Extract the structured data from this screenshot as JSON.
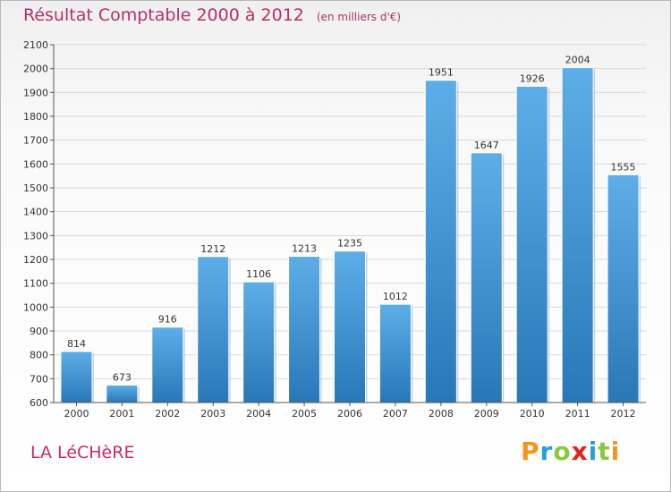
{
  "header": {
    "title": "Résultat Comptable 2000 à 2012",
    "unit": "(en milliers d'€)"
  },
  "footer": {
    "commune": "LA LéCHèRE",
    "logo_text": "Proxiti",
    "logo_colors": [
      "#f7941d",
      "#2a9fd8",
      "#8dc63f",
      "#e2231a",
      "#2a9fd8",
      "#8dc63f",
      "#f7941d"
    ]
  },
  "colors": {
    "bar_top": "#5daee8",
    "bar_bottom": "#2878b8",
    "title": "#b5306b",
    "grid": "#d8d8d8"
  },
  "chart_data": {
    "type": "bar",
    "title": "Résultat Comptable 2000 à 2012",
    "subtitle": "(en milliers d'€)",
    "categories": [
      "2000",
      "2001",
      "2002",
      "2003",
      "2004",
      "2005",
      "2006",
      "2007",
      "2008",
      "2009",
      "2010",
      "2011",
      "2012"
    ],
    "values": [
      814,
      673,
      916,
      1212,
      1106,
      1213,
      1235,
      1012,
      1951,
      1647,
      1926,
      2004,
      1555
    ],
    "ylim": [
      600,
      2100
    ],
    "yticks": [
      600,
      700,
      800,
      900,
      1000,
      1100,
      1200,
      1300,
      1400,
      1500,
      1600,
      1700,
      1800,
      1900,
      2000,
      2100
    ],
    "xlabel": "",
    "ylabel": "",
    "grid": true
  }
}
